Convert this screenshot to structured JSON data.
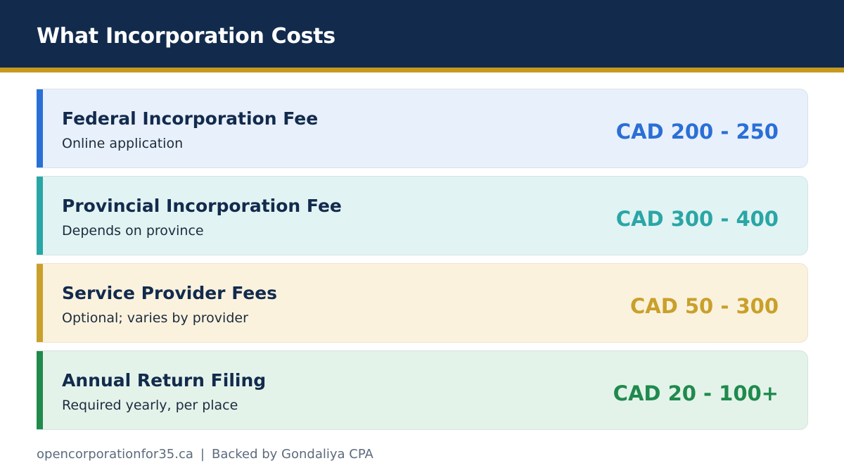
{
  "header": {
    "title": "What Incorporation Costs"
  },
  "colors": {
    "header_bg": "#122b4d",
    "header_stripe": "#c79a1f"
  },
  "cards": [
    {
      "name": "Federal Incorporation Fee",
      "description": "Online application",
      "price": "CAD 200 - 250",
      "accent": "#2a6fd6",
      "bg": "#e8f0fb"
    },
    {
      "name": "Provincial Incorporation Fee",
      "description": "Depends on province",
      "price": "CAD 300 - 400",
      "accent": "#2aa6a6",
      "bg": "#e2f3f3"
    },
    {
      "name": "Service Provider Fees",
      "description": "Optional; varies by provider",
      "price": "CAD 50 - 300",
      "accent": "#c9a02a",
      "bg": "#fbf2de"
    },
    {
      "name": "Annual Return Filing",
      "description": "Required yearly, per place",
      "price": "CAD 20 - 100+",
      "accent": "#1f8a4c",
      "bg": "#e4f3ea"
    }
  ],
  "footer": {
    "site": "opencorporationfor35.ca",
    "separator": "|",
    "backed": "Backed by Gondaliya CPA"
  }
}
